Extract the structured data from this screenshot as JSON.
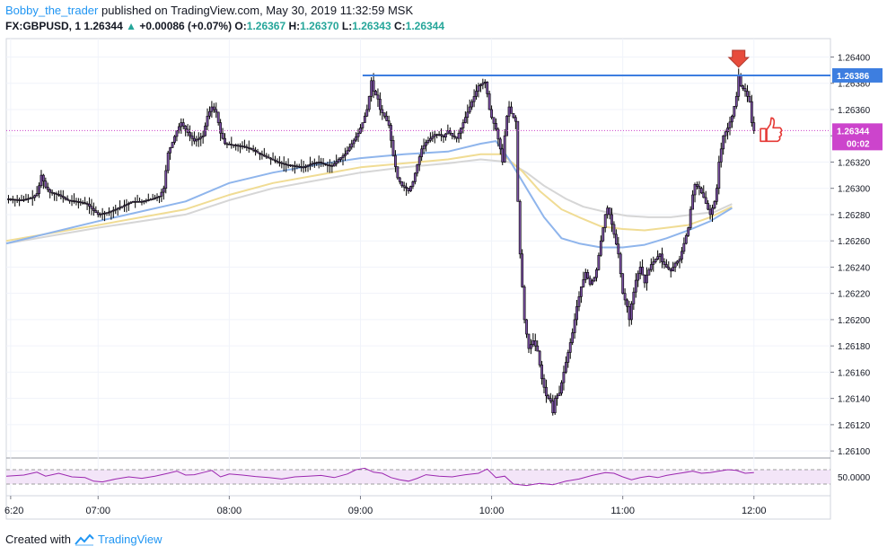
{
  "header": {
    "author": "Bobby_the_trader",
    "published": "published on TradingView.com, May 30, 2019 11:32:59 MSK",
    "symbol": "FX:GBPUSD, 1",
    "last": "1.26344",
    "arrow": "▲",
    "change": "+0.00086 (+0.07%)",
    "o_label": "O:",
    "o_value": "1.26367",
    "h_label": "H:",
    "h_value": "1.26370",
    "l_label": "L:",
    "l_value": "1.26343",
    "c_label": "C:",
    "c_value": "1.26344"
  },
  "footer": {
    "created_with": "Created with",
    "brand": "TradingView"
  },
  "icons": {
    "brand_logo": "tradingview-logo-icon",
    "marker": "arrow-down-icon",
    "thumb": "thumbs-up-icon"
  },
  "chart_data": {
    "type": "candlestick",
    "symbol": "FX:GBPUSD",
    "interval": "1",
    "y_ticks": [
      "1.26400",
      "1.26380",
      "1.26360",
      "1.26340",
      "1.26320",
      "1.26300",
      "1.26280",
      "1.26260",
      "1.26240",
      "1.26220",
      "1.26200",
      "1.26180",
      "1.26160",
      "1.26140",
      "1.26120",
      "1.26100"
    ],
    "ylim": [
      1.26096,
      1.26414
    ],
    "x_ticks": [
      "6:20",
      "07:00",
      "08:00",
      "09:00",
      "10:00",
      "11:00",
      "12:00"
    ],
    "x_tick_minutes": [
      380,
      420,
      480,
      540,
      600,
      660,
      720
    ],
    "xlim_minutes": [
      378,
      755
    ],
    "resistance_level": 1.26386,
    "resistance_label": "1.26386",
    "resistance_from_minute": 541,
    "last_price_label": "1.26344",
    "last_price": 1.26344,
    "countdown_label": "00:02",
    "colors": {
      "resistance": "#3d7ee0",
      "last_price": "#cc44cc",
      "candle_body": "#7a4fa3",
      "ma_fast": "#8fb5ec",
      "ma_mid": "#f0dc94",
      "ma_slow": "#d6d6d6",
      "marker": "#e74c3c"
    },
    "price_path": [
      [
        378,
        1.26292
      ],
      [
        385,
        1.26291
      ],
      [
        390,
        1.26293
      ],
      [
        392,
        1.26296
      ],
      [
        393,
        1.26302
      ],
      [
        394,
        1.2631
      ],
      [
        396,
        1.26301
      ],
      [
        398,
        1.26297
      ],
      [
        402,
        1.26295
      ],
      [
        406,
        1.26291
      ],
      [
        410,
        1.2629
      ],
      [
        413,
        1.26289
      ],
      [
        415,
        1.26288
      ],
      [
        418,
        1.26283
      ],
      [
        420,
        1.2628
      ],
      [
        425,
        1.26282
      ],
      [
        428,
        1.26284
      ],
      [
        432,
        1.26287
      ],
      [
        436,
        1.2629
      ],
      [
        440,
        1.2629
      ],
      [
        445,
        1.26292
      ],
      [
        448,
        1.26294
      ],
      [
        450,
        1.263
      ],
      [
        452,
        1.26327
      ],
      [
        454,
        1.26335
      ],
      [
        456,
        1.26344
      ],
      [
        458,
        1.2635
      ],
      [
        460,
        1.26345
      ],
      [
        462,
        1.2634
      ],
      [
        464,
        1.26336
      ],
      [
        466,
        1.26338
      ],
      [
        468,
        1.2634
      ],
      [
        470,
        1.26355
      ],
      [
        472,
        1.26362
      ],
      [
        474,
        1.26358
      ],
      [
        476,
        1.26342
      ],
      [
        478,
        1.26334
      ],
      [
        482,
        1.26333
      ],
      [
        486,
        1.26332
      ],
      [
        490,
        1.2633
      ],
      [
        494,
        1.26326
      ],
      [
        498,
        1.26323
      ],
      [
        502,
        1.2632
      ],
      [
        506,
        1.26318
      ],
      [
        510,
        1.26317
      ],
      [
        514,
        1.26316
      ],
      [
        518,
        1.26319
      ],
      [
        521,
        1.2632
      ],
      [
        524,
        1.26318
      ],
      [
        527,
        1.26317
      ],
      [
        530,
        1.26322
      ],
      [
        533,
        1.26326
      ],
      [
        536,
        1.26334
      ],
      [
        539,
        1.26342
      ],
      [
        541,
        1.2635
      ],
      [
        543,
        1.2636
      ],
      [
        544,
        1.2637
      ],
      [
        545,
        1.26382
      ],
      [
        546,
        1.26374
      ],
      [
        548,
        1.26368
      ],
      [
        549,
        1.2636
      ],
      [
        551,
        1.26355
      ],
      [
        553,
        1.26348
      ],
      [
        555,
        1.26325
      ],
      [
        557,
        1.26308
      ],
      [
        559,
        1.26302
      ],
      [
        561,
        1.263
      ],
      [
        562,
        1.26298
      ],
      [
        564,
        1.26305
      ],
      [
        566,
        1.26318
      ],
      [
        568,
        1.2633
      ],
      [
        570,
        1.26335
      ],
      [
        572,
        1.26338
      ],
      [
        574,
        1.26341
      ],
      [
        576,
        1.26341
      ],
      [
        578,
        1.26339
      ],
      [
        580,
        1.26344
      ],
      [
        582,
        1.2634
      ],
      [
        584,
        1.26338
      ],
      [
        586,
        1.26346
      ],
      [
        588,
        1.26354
      ],
      [
        590,
        1.26362
      ],
      [
        592,
        1.2637
      ],
      [
        594,
        1.26378
      ],
      [
        596,
        1.2638
      ],
      [
        597,
        1.26381
      ],
      [
        598,
        1.26372
      ],
      [
        599,
        1.2636
      ],
      [
        600,
        1.26354
      ],
      [
        602,
        1.26345
      ],
      [
        604,
        1.2633
      ],
      [
        605,
        1.2632
      ],
      [
        606,
        1.2634
      ],
      [
        607,
        1.26355
      ],
      [
        608,
        1.26362
      ],
      [
        609,
        1.26357
      ],
      [
        611,
        1.26351
      ],
      [
        612,
        1.2629
      ],
      [
        613,
        1.2625
      ],
      [
        614,
        1.26225
      ],
      [
        615,
        1.262
      ],
      [
        617,
        1.26178
      ],
      [
        619,
        1.26184
      ],
      [
        621,
        1.26176
      ],
      [
        623,
        1.26155
      ],
      [
        625,
        1.26142
      ],
      [
        627,
        1.26138
      ],
      [
        628,
        1.26129
      ],
      [
        629,
        1.2614
      ],
      [
        631,
        1.26144
      ],
      [
        633,
        1.2616
      ],
      [
        635,
        1.26175
      ],
      [
        637,
        1.2619
      ],
      [
        639,
        1.2621
      ],
      [
        641,
        1.26225
      ],
      [
        643,
        1.26236
      ],
      [
        645,
        1.26227
      ],
      [
        647,
        1.26232
      ],
      [
        648,
        1.26238
      ],
      [
        650,
        1.2626
      ],
      [
        652,
        1.2628
      ],
      [
        653,
        1.26285
      ],
      [
        654,
        1.2628
      ],
      [
        656,
        1.26265
      ],
      [
        658,
        1.2625
      ],
      [
        660,
        1.2622
      ],
      [
        662,
        1.2621
      ],
      [
        663,
        1.262
      ],
      [
        664,
        1.26212
      ],
      [
        666,
        1.2623
      ],
      [
        668,
        1.2624
      ],
      [
        670,
        1.26228
      ],
      [
        671,
        1.26234
      ],
      [
        673,
        1.26242
      ],
      [
        675,
        1.26246
      ],
      [
        677,
        1.2625
      ],
      [
        678,
        1.26244
      ],
      [
        680,
        1.2624
      ],
      [
        682,
        1.26237
      ],
      [
        684,
        1.26243
      ],
      [
        686,
        1.26246
      ],
      [
        688,
        1.26258
      ],
      [
        690,
        1.2627
      ],
      [
        691,
        1.26284
      ],
      [
        692,
        1.26295
      ],
      [
        693,
        1.26303
      ],
      [
        695,
        1.263
      ],
      [
        697,
        1.26293
      ],
      [
        699,
        1.26284
      ],
      [
        700,
        1.2628
      ],
      [
        702,
        1.2629
      ],
      [
        703,
        1.263
      ],
      [
        704,
        1.2632
      ],
      [
        706,
        1.2634
      ],
      [
        708,
        1.26346
      ],
      [
        710,
        1.26355
      ],
      [
        712,
        1.2637
      ],
      [
        713,
        1.26386
      ],
      [
        714,
        1.26378
      ],
      [
        716,
        1.26374
      ],
      [
        717,
        1.2637
      ],
      [
        718,
        1.26366
      ],
      [
        719,
        1.2635
      ],
      [
        720,
        1.26344
      ]
    ],
    "ma_fast": [
      [
        378,
        1.26258
      ],
      [
        420,
        1.26275
      ],
      [
        460,
        1.2629
      ],
      [
        480,
        1.26304
      ],
      [
        500,
        1.26312
      ],
      [
        520,
        1.26318
      ],
      [
        540,
        1.26323
      ],
      [
        560,
        1.26326
      ],
      [
        580,
        1.26328
      ],
      [
        595,
        1.26334
      ],
      [
        602,
        1.26336
      ],
      [
        608,
        1.26322
      ],
      [
        616,
        1.263
      ],
      [
        624,
        1.26278
      ],
      [
        632,
        1.26262
      ],
      [
        640,
        1.26258
      ],
      [
        650,
        1.26255
      ],
      [
        660,
        1.26255
      ],
      [
        670,
        1.26257
      ],
      [
        680,
        1.26262
      ],
      [
        690,
        1.26268
      ],
      [
        700,
        1.26275
      ],
      [
        710,
        1.26285
      ]
    ],
    "ma_mid": [
      [
        378,
        1.2626
      ],
      [
        420,
        1.26272
      ],
      [
        460,
        1.26284
      ],
      [
        480,
        1.26295
      ],
      [
        500,
        1.26304
      ],
      [
        520,
        1.2631
      ],
      [
        540,
        1.26316
      ],
      [
        560,
        1.26319
      ],
      [
        580,
        1.26322
      ],
      [
        595,
        1.26326
      ],
      [
        605,
        1.26326
      ],
      [
        614,
        1.26313
      ],
      [
        622,
        1.26298
      ],
      [
        632,
        1.26284
      ],
      [
        640,
        1.26278
      ],
      [
        650,
        1.26271
      ],
      [
        660,
        1.26269
      ],
      [
        670,
        1.26268
      ],
      [
        680,
        1.2627
      ],
      [
        690,
        1.26272
      ],
      [
        700,
        1.26278
      ],
      [
        710,
        1.26286
      ]
    ],
    "ma_slow": [
      [
        378,
        1.26258
      ],
      [
        420,
        1.2627
      ],
      [
        460,
        1.2628
      ],
      [
        480,
        1.26291
      ],
      [
        500,
        1.263
      ],
      [
        520,
        1.26306
      ],
      [
        540,
        1.26312
      ],
      [
        560,
        1.26316
      ],
      [
        580,
        1.26319
      ],
      [
        595,
        1.26322
      ],
      [
        608,
        1.2632
      ],
      [
        616,
        1.26312
      ],
      [
        624,
        1.26302
      ],
      [
        634,
        1.26292
      ],
      [
        642,
        1.26286
      ],
      [
        652,
        1.26282
      ],
      [
        662,
        1.26279
      ],
      [
        672,
        1.26278
      ],
      [
        682,
        1.26278
      ],
      [
        692,
        1.2628
      ],
      [
        702,
        1.26282
      ],
      [
        710,
        1.26288
      ]
    ],
    "oscillator": {
      "tick_label": "50.0000",
      "band": [
        30,
        70
      ],
      "ylim": [
        0,
        100
      ],
      "colors": {
        "line": "#9c27b0",
        "band_fill": "#f3e5f8",
        "band_edge": "#9e9e9e"
      },
      "values": [
        [
          378,
          52
        ],
        [
          386,
          55
        ],
        [
          392,
          63
        ],
        [
          396,
          52
        ],
        [
          402,
          60
        ],
        [
          408,
          50
        ],
        [
          414,
          48
        ],
        [
          418,
          38
        ],
        [
          422,
          36
        ],
        [
          428,
          44
        ],
        [
          434,
          50
        ],
        [
          440,
          46
        ],
        [
          446,
          52
        ],
        [
          452,
          60
        ],
        [
          456,
          66
        ],
        [
          460,
          55
        ],
        [
          464,
          56
        ],
        [
          468,
          62
        ],
        [
          472,
          68
        ],
        [
          476,
          50
        ],
        [
          480,
          58
        ],
        [
          486,
          55
        ],
        [
          492,
          51
        ],
        [
          498,
          48
        ],
        [
          504,
          44
        ],
        [
          510,
          50
        ],
        [
          516,
          52
        ],
        [
          522,
          54
        ],
        [
          528,
          48
        ],
        [
          534,
          58
        ],
        [
          538,
          70
        ],
        [
          542,
          74
        ],
        [
          546,
          63
        ],
        [
          550,
          60
        ],
        [
          554,
          48
        ],
        [
          558,
          42
        ],
        [
          562,
          38
        ],
        [
          566,
          46
        ],
        [
          570,
          56
        ],
        [
          576,
          52
        ],
        [
          582,
          50
        ],
        [
          588,
          56
        ],
        [
          594,
          60
        ],
        [
          598,
          72
        ],
        [
          602,
          48
        ],
        [
          606,
          52
        ],
        [
          610,
          30
        ],
        [
          616,
          26
        ],
        [
          622,
          32
        ],
        [
          628,
          28
        ],
        [
          634,
          38
        ],
        [
          640,
          44
        ],
        [
          646,
          54
        ],
        [
          652,
          62
        ],
        [
          656,
          60
        ],
        [
          660,
          50
        ],
        [
          664,
          42
        ],
        [
          668,
          48
        ],
        [
          672,
          52
        ],
        [
          676,
          48
        ],
        [
          680,
          54
        ],
        [
          684,
          58
        ],
        [
          688,
          62
        ],
        [
          692,
          66
        ],
        [
          696,
          60
        ],
        [
          700,
          62
        ],
        [
          704,
          66
        ],
        [
          708,
          70
        ],
        [
          712,
          68
        ],
        [
          716,
          60
        ],
        [
          720,
          62
        ]
      ]
    }
  }
}
